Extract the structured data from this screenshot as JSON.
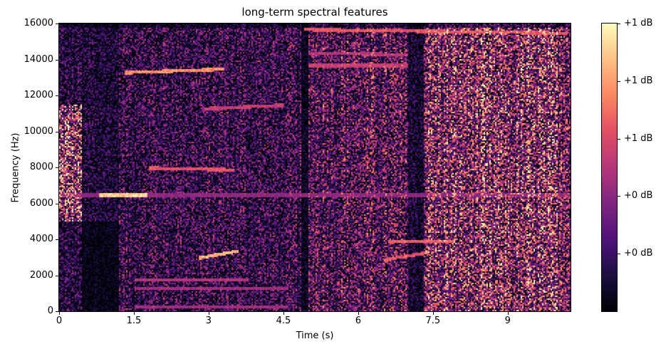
{
  "chart_data": {
    "type": "heatmap",
    "title": "long-term spectral features",
    "xlabel": "Time (s)",
    "ylabel": "Frequency (Hz)",
    "xlim": [
      0,
      10.26
    ],
    "ylim": [
      0,
      16000
    ],
    "x_ticks": [
      {
        "value": 0,
        "label": "0"
      },
      {
        "value": 1.5,
        "label": "1.5"
      },
      {
        "value": 3,
        "label": "3"
      },
      {
        "value": 4.5,
        "label": "4.5"
      },
      {
        "value": 6,
        "label": "6"
      },
      {
        "value": 7.5,
        "label": "7.5"
      },
      {
        "value": 9,
        "label": "9"
      }
    ],
    "y_ticks": [
      {
        "value": 0,
        "label": "0"
      },
      {
        "value": 2000,
        "label": "2000"
      },
      {
        "value": 4000,
        "label": "4000"
      },
      {
        "value": 6000,
        "label": "6000"
      },
      {
        "value": 8000,
        "label": "8000"
      },
      {
        "value": 10000,
        "label": "10000"
      },
      {
        "value": 12000,
        "label": "12000"
      },
      {
        "value": 14000,
        "label": "14000"
      },
      {
        "value": 16000,
        "label": "16000"
      }
    ],
    "colorbar": {
      "colormap": "magma",
      "ticks": [
        {
          "value": 1.0,
          "label": "+1 dB"
        },
        {
          "value": 0.8,
          "label": "+1 dB"
        },
        {
          "value": 0.6,
          "label": "+1 dB"
        },
        {
          "value": 0.4,
          "label": "+0 dB"
        },
        {
          "value": 0.2,
          "label": "+0 dB"
        }
      ]
    },
    "features": [
      {
        "t": [
          0.8,
          1.75
        ],
        "f": [
          6500,
          6500
        ],
        "level": 1.0
      },
      {
        "t": [
          0,
          10.26
        ],
        "f": [
          6500,
          6500
        ],
        "level": 0.45
      },
      {
        "t": [
          2.8,
          3.6
        ],
        "f": [
          3000,
          3400
        ],
        "level": 0.95
      },
      {
        "t": [
          1.3,
          3.3
        ],
        "f": [
          13300,
          13500
        ],
        "level": 0.85
      },
      {
        "t": [
          4.9,
          10.2
        ],
        "f": [
          15700,
          15500
        ],
        "level": 0.7
      },
      {
        "t": [
          6.6,
          7.9
        ],
        "f": [
          3900,
          3900
        ],
        "level": 0.75
      },
      {
        "t": [
          6.5,
          7.4
        ],
        "f": [
          2900,
          3300
        ],
        "level": 0.7
      },
      {
        "t": [
          1.8,
          3.5
        ],
        "f": [
          8000,
          7900
        ],
        "level": 0.7
      },
      {
        "t": [
          2.9,
          4.5
        ],
        "f": [
          11300,
          11500
        ],
        "level": 0.6
      },
      {
        "t": [
          1.5,
          3.8
        ],
        "f": [
          1800,
          1800
        ],
        "level": 0.55
      },
      {
        "t": [
          1.5,
          4.6
        ],
        "f": [
          1300,
          1300
        ],
        "level": 0.5
      },
      {
        "t": [
          1.5,
          4.6
        ],
        "f": [
          300,
          300
        ],
        "level": 0.5
      },
      {
        "t": [
          5.0,
          7.0
        ],
        "f": [
          13700,
          13700
        ],
        "level": 0.6
      },
      {
        "t": [
          5.0,
          7.0
        ],
        "f": [
          14400,
          14300
        ],
        "level": 0.55
      }
    ]
  }
}
